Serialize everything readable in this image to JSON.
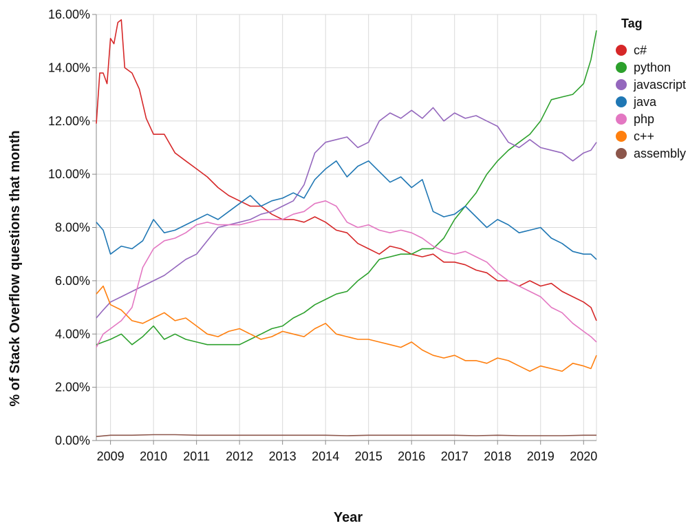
{
  "chart_data": {
    "type": "line",
    "title": "",
    "xlabel": "Year",
    "ylabel": "% of Stack Overflow questions that month",
    "xlim": [
      2008.67,
      2020.3
    ],
    "ylim": [
      0,
      16
    ],
    "x_ticks": [
      2009,
      2010,
      2011,
      2012,
      2013,
      2014,
      2015,
      2016,
      2017,
      2018,
      2019,
      2020
    ],
    "y_ticks": [
      0,
      2,
      4,
      6,
      8,
      10,
      12,
      14,
      16
    ],
    "y_tick_labels": [
      "0.00%",
      "2.00%",
      "4.00%",
      "6.00%",
      "8.00%",
      "10.00%",
      "12.00%",
      "14.00%",
      "16.00%"
    ],
    "grid": true,
    "legend": {
      "title": "Tag",
      "position": "right"
    },
    "series": [
      {
        "name": "c#",
        "color": "#d62728",
        "x": [
          2008.67,
          2008.75,
          2008.83,
          2008.92,
          2009.0,
          2009.08,
          2009.17,
          2009.25,
          2009.33,
          2009.5,
          2009.67,
          2009.83,
          2010.0,
          2010.25,
          2010.5,
          2010.75,
          2011.0,
          2011.25,
          2011.5,
          2011.75,
          2012.0,
          2012.25,
          2012.5,
          2012.75,
          2013.0,
          2013.25,
          2013.5,
          2013.75,
          2014.0,
          2014.25,
          2014.5,
          2014.75,
          2015.0,
          2015.25,
          2015.5,
          2015.75,
          2016.0,
          2016.25,
          2016.5,
          2016.75,
          2017.0,
          2017.25,
          2017.5,
          2017.75,
          2018.0,
          2018.25,
          2018.5,
          2018.75,
          2019.0,
          2019.25,
          2019.5,
          2019.75,
          2020.0,
          2020.17,
          2020.3
        ],
        "y": [
          11.9,
          13.8,
          13.8,
          13.4,
          15.1,
          14.9,
          15.7,
          15.8,
          14.0,
          13.8,
          13.2,
          12.1,
          11.5,
          11.5,
          10.8,
          10.5,
          10.2,
          9.9,
          9.5,
          9.2,
          9.0,
          8.8,
          8.8,
          8.5,
          8.3,
          8.3,
          8.2,
          8.4,
          8.2,
          7.9,
          7.8,
          7.4,
          7.2,
          7.0,
          7.3,
          7.2,
          7.0,
          6.9,
          7.0,
          6.7,
          6.7,
          6.6,
          6.4,
          6.3,
          6.0,
          6.0,
          5.8,
          6.0,
          5.8,
          5.9,
          5.6,
          5.4,
          5.2,
          5.0,
          4.5
        ]
      },
      {
        "name": "python",
        "color": "#2ca02c",
        "x": [
          2008.67,
          2008.83,
          2009.0,
          2009.25,
          2009.5,
          2009.75,
          2010.0,
          2010.25,
          2010.5,
          2010.75,
          2011.0,
          2011.25,
          2011.5,
          2011.75,
          2012.0,
          2012.25,
          2012.5,
          2012.75,
          2013.0,
          2013.25,
          2013.5,
          2013.75,
          2014.0,
          2014.25,
          2014.5,
          2014.75,
          2015.0,
          2015.25,
          2015.5,
          2015.75,
          2016.0,
          2016.25,
          2016.5,
          2016.75,
          2017.0,
          2017.25,
          2017.5,
          2017.75,
          2018.0,
          2018.25,
          2018.5,
          2018.75,
          2019.0,
          2019.25,
          2019.5,
          2019.75,
          2020.0,
          2020.17,
          2020.3
        ],
        "y": [
          3.6,
          3.7,
          3.8,
          4.0,
          3.6,
          3.9,
          4.3,
          3.8,
          4.0,
          3.8,
          3.7,
          3.6,
          3.6,
          3.6,
          3.6,
          3.8,
          4.0,
          4.2,
          4.3,
          4.6,
          4.8,
          5.1,
          5.3,
          5.5,
          5.6,
          6.0,
          6.3,
          6.8,
          6.9,
          7.0,
          7.0,
          7.2,
          7.2,
          7.6,
          8.3,
          8.8,
          9.3,
          10.0,
          10.5,
          10.9,
          11.2,
          11.5,
          12.0,
          12.8,
          12.9,
          13.0,
          13.4,
          14.3,
          15.4
        ]
      },
      {
        "name": "javascript",
        "color": "#9467bd",
        "x": [
          2008.67,
          2008.83,
          2009.0,
          2009.25,
          2009.5,
          2009.75,
          2010.0,
          2010.25,
          2010.5,
          2010.75,
          2011.0,
          2011.25,
          2011.5,
          2011.75,
          2012.0,
          2012.25,
          2012.5,
          2012.75,
          2013.0,
          2013.25,
          2013.5,
          2013.75,
          2014.0,
          2014.25,
          2014.5,
          2014.75,
          2015.0,
          2015.25,
          2015.5,
          2015.75,
          2016.0,
          2016.25,
          2016.5,
          2016.75,
          2017.0,
          2017.25,
          2017.5,
          2017.75,
          2018.0,
          2018.25,
          2018.5,
          2018.75,
          2019.0,
          2019.25,
          2019.5,
          2019.75,
          2020.0,
          2020.17,
          2020.3
        ],
        "y": [
          4.6,
          4.9,
          5.2,
          5.4,
          5.6,
          5.8,
          6.0,
          6.2,
          6.5,
          6.8,
          7.0,
          7.5,
          8.0,
          8.1,
          8.2,
          8.3,
          8.5,
          8.6,
          8.8,
          9.0,
          9.6,
          10.8,
          11.2,
          11.3,
          11.4,
          11.0,
          11.2,
          12.0,
          12.3,
          12.1,
          12.4,
          12.1,
          12.5,
          12.0,
          12.3,
          12.1,
          12.2,
          12.0,
          11.8,
          11.2,
          11.0,
          11.3,
          11.0,
          10.9,
          10.8,
          10.5,
          10.8,
          10.9,
          11.2
        ]
      },
      {
        "name": "java",
        "color": "#1f77b4",
        "x": [
          2008.67,
          2008.83,
          2009.0,
          2009.25,
          2009.5,
          2009.75,
          2010.0,
          2010.25,
          2010.5,
          2010.75,
          2011.0,
          2011.25,
          2011.5,
          2011.75,
          2012.0,
          2012.25,
          2012.5,
          2012.75,
          2013.0,
          2013.25,
          2013.5,
          2013.75,
          2014.0,
          2014.25,
          2014.5,
          2014.75,
          2015.0,
          2015.25,
          2015.5,
          2015.75,
          2016.0,
          2016.25,
          2016.5,
          2016.75,
          2017.0,
          2017.25,
          2017.5,
          2017.75,
          2018.0,
          2018.25,
          2018.5,
          2018.75,
          2019.0,
          2019.25,
          2019.5,
          2019.75,
          2020.0,
          2020.17,
          2020.3
        ],
        "y": [
          8.2,
          7.9,
          7.0,
          7.3,
          7.2,
          7.5,
          8.3,
          7.8,
          7.9,
          8.1,
          8.3,
          8.5,
          8.3,
          8.6,
          8.9,
          9.2,
          8.8,
          9.0,
          9.1,
          9.3,
          9.1,
          9.8,
          10.2,
          10.5,
          9.9,
          10.3,
          10.5,
          10.1,
          9.7,
          9.9,
          9.5,
          9.8,
          8.6,
          8.4,
          8.5,
          8.8,
          8.4,
          8.0,
          8.3,
          8.1,
          7.8,
          7.9,
          8.0,
          7.6,
          7.4,
          7.1,
          7.0,
          7.0,
          6.8
        ]
      },
      {
        "name": "php",
        "color": "#e377c2",
        "x": [
          2008.67,
          2008.83,
          2009.0,
          2009.25,
          2009.5,
          2009.75,
          2010.0,
          2010.25,
          2010.5,
          2010.75,
          2011.0,
          2011.25,
          2011.5,
          2011.75,
          2012.0,
          2012.25,
          2012.5,
          2012.75,
          2013.0,
          2013.25,
          2013.5,
          2013.75,
          2014.0,
          2014.25,
          2014.5,
          2014.75,
          2015.0,
          2015.25,
          2015.5,
          2015.75,
          2016.0,
          2016.25,
          2016.5,
          2016.75,
          2017.0,
          2017.25,
          2017.5,
          2017.75,
          2018.0,
          2018.25,
          2018.5,
          2018.75,
          2019.0,
          2019.25,
          2019.5,
          2019.75,
          2020.0,
          2020.17,
          2020.3
        ],
        "y": [
          3.5,
          4.0,
          4.2,
          4.5,
          5.0,
          6.5,
          7.2,
          7.5,
          7.6,
          7.8,
          8.1,
          8.2,
          8.1,
          8.1,
          8.1,
          8.2,
          8.3,
          8.3,
          8.3,
          8.5,
          8.6,
          8.9,
          9.0,
          8.8,
          8.2,
          8.0,
          8.1,
          7.9,
          7.8,
          7.9,
          7.8,
          7.6,
          7.3,
          7.1,
          7.0,
          7.1,
          6.9,
          6.7,
          6.3,
          6.0,
          5.8,
          5.6,
          5.4,
          5.0,
          4.8,
          4.4,
          4.1,
          3.9,
          3.7
        ]
      },
      {
        "name": "c++",
        "color": "#ff7f0e",
        "x": [
          2008.67,
          2008.83,
          2009.0,
          2009.25,
          2009.5,
          2009.75,
          2010.0,
          2010.25,
          2010.5,
          2010.75,
          2011.0,
          2011.25,
          2011.5,
          2011.75,
          2012.0,
          2012.25,
          2012.5,
          2012.75,
          2013.0,
          2013.25,
          2013.5,
          2013.75,
          2014.0,
          2014.25,
          2014.5,
          2014.75,
          2015.0,
          2015.25,
          2015.5,
          2015.75,
          2016.0,
          2016.25,
          2016.5,
          2016.75,
          2017.0,
          2017.25,
          2017.5,
          2017.75,
          2018.0,
          2018.25,
          2018.5,
          2018.75,
          2019.0,
          2019.25,
          2019.5,
          2019.75,
          2020.0,
          2020.17,
          2020.3
        ],
        "y": [
          5.5,
          5.8,
          5.1,
          4.9,
          4.5,
          4.4,
          4.6,
          4.8,
          4.5,
          4.6,
          4.3,
          4.0,
          3.9,
          4.1,
          4.2,
          4.0,
          3.8,
          3.9,
          4.1,
          4.0,
          3.9,
          4.2,
          4.4,
          4.0,
          3.9,
          3.8,
          3.8,
          3.7,
          3.6,
          3.5,
          3.7,
          3.4,
          3.2,
          3.1,
          3.2,
          3.0,
          3.0,
          2.9,
          3.1,
          3.0,
          2.8,
          2.6,
          2.8,
          2.7,
          2.6,
          2.9,
          2.8,
          2.7,
          3.2
        ]
      },
      {
        "name": "assembly",
        "color": "#8c564b",
        "x": [
          2008.67,
          2009.0,
          2009.5,
          2010.0,
          2010.5,
          2011.0,
          2011.5,
          2012.0,
          2012.5,
          2013.0,
          2013.5,
          2014.0,
          2014.5,
          2015.0,
          2015.5,
          2016.0,
          2016.5,
          2017.0,
          2017.5,
          2018.0,
          2018.5,
          2019.0,
          2019.5,
          2020.0,
          2020.3
        ],
        "y": [
          0.15,
          0.2,
          0.2,
          0.22,
          0.22,
          0.2,
          0.2,
          0.2,
          0.2,
          0.2,
          0.2,
          0.2,
          0.18,
          0.2,
          0.2,
          0.2,
          0.2,
          0.2,
          0.18,
          0.2,
          0.18,
          0.18,
          0.18,
          0.2,
          0.2
        ]
      }
    ]
  }
}
